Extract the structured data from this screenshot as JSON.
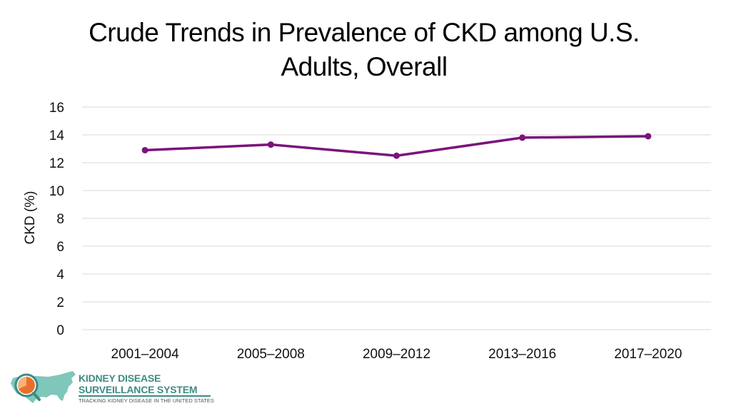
{
  "title": {
    "line1": "Crude Trends in Prevalence of CKD among U.S.",
    "line2": "Adults, Overall"
  },
  "chart_data": {
    "type": "line",
    "title": "Crude Trends in Prevalence of CKD among U.S. Adults, Overall",
    "xlabel": "",
    "ylabel": "CKD (%)",
    "categories": [
      "2001–2004",
      "2005–2008",
      "2009–2012",
      "2013–2016",
      "2017–2020"
    ],
    "series": [
      {
        "name": "Overall",
        "values": [
          12.9,
          13.3,
          12.5,
          13.8,
          13.9
        ]
      }
    ],
    "ylim": [
      0,
      16
    ],
    "yticks": [
      "0",
      "2",
      "4",
      "6",
      "8",
      "10",
      "12",
      "14",
      "16"
    ],
    "grid": true,
    "line_color": "#7b137b",
    "grid_color": "#d9d9d9"
  },
  "logo": {
    "line1": "KIDNEY DISEASE",
    "line2": "SURVEILLANCE SYSTEM",
    "line3": "TRACKING KIDNEY DISEASE IN THE UNITED STATES",
    "map_color": "#7fc6bb",
    "accent_color": "#e8702a"
  }
}
